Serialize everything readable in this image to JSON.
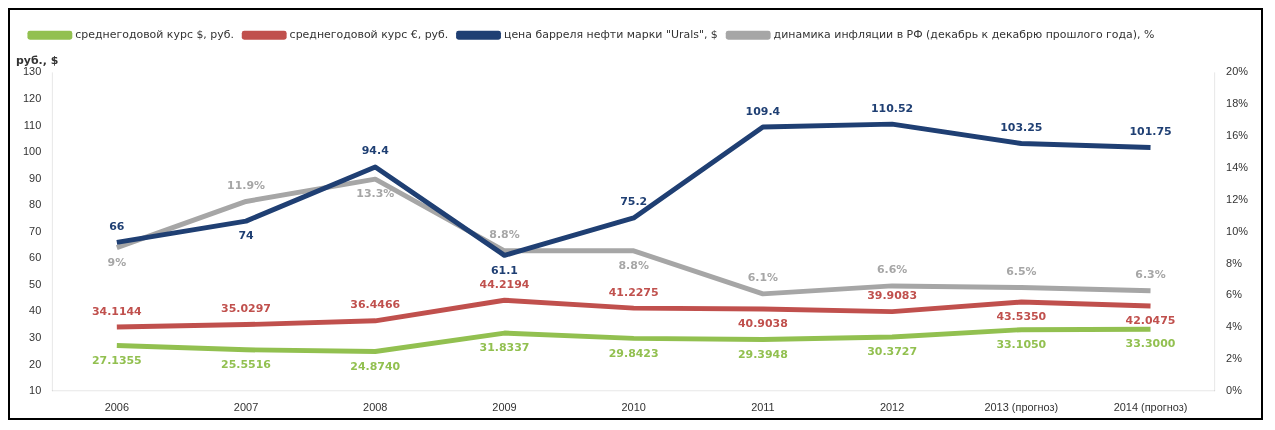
{
  "chart_data": {
    "type": "line",
    "ylabel": "руб., $",
    "categories": [
      "2006",
      "2007",
      "2008",
      "2009",
      "2010",
      "2011",
      "2012",
      "2013 (прогноз)",
      "2014 (прогноз)"
    ],
    "series": [
      {
        "name": "среднегодовой курс $, руб.",
        "color": "#92c050",
        "values": [
          27.1355,
          25.5516,
          24.874,
          31.8337,
          29.8423,
          29.3948,
          30.3727,
          33.105,
          33.3
        ],
        "value_labels": [
          "27.1355",
          "25.5516",
          "24.8740",
          "31.8337",
          "29.8423",
          "29.3948",
          "30.3727",
          "33.1050",
          "33.3000"
        ]
      },
      {
        "name": "среднегодовой курс €, руб.",
        "color": "#c0504d",
        "values": [
          34.1144,
          35.0297,
          36.4466,
          44.2194,
          41.2275,
          40.9038,
          39.9083,
          43.535,
          42.0475
        ],
        "value_labels": [
          "34.1144",
          "35.0297",
          "36.4466",
          "44.2194",
          "41.2275",
          "40.9038",
          "39.9083",
          "43.5350",
          "42.0475"
        ]
      },
      {
        "name": "цена барреля нефти марки \"Urals\", $",
        "color": "#1f3f73",
        "values": [
          66,
          74,
          94.4,
          61.1,
          75.2,
          109.4,
          110.52,
          103.25,
          101.75
        ],
        "value_labels": [
          "66",
          "74",
          "94.4",
          "61.1",
          "75.2",
          "109.4",
          "110.52",
          "103.25",
          "101.75"
        ]
      },
      {
        "name": "динамика инфляции в РФ (декабрь к декабрю прошлого года), %",
        "color": "#a6a6a6",
        "axis": "y2",
        "values": [
          9,
          11.9,
          13.3,
          8.8,
          8.8,
          6.1,
          6.6,
          6.5,
          6.3
        ],
        "value_labels": [
          "9%",
          "11.9%",
          "13.3%",
          "8.8%",
          "8.8%",
          "6.1%",
          "6.6%",
          "6.5%",
          "6.3%"
        ]
      }
    ],
    "ylim": [
      10,
      130
    ],
    "yticks": [
      10,
      20,
      30,
      40,
      50,
      60,
      70,
      80,
      90,
      100,
      110,
      120,
      130
    ],
    "y2lim": [
      0,
      20
    ],
    "y2ticks": [
      {
        "value": 0,
        "label": "0%"
      },
      {
        "value": 2,
        "label": "2%"
      },
      {
        "value": 4,
        "label": "4%"
      },
      {
        "value": 6,
        "label": "6%"
      },
      {
        "value": 8,
        "label": "8%"
      },
      {
        "value": 10,
        "label": "10%"
      },
      {
        "value": 12,
        "label": "12%"
      },
      {
        "value": 14,
        "label": "14%"
      },
      {
        "value": 16,
        "label": "16%"
      },
      {
        "value": 18,
        "label": "18%"
      },
      {
        "value": 20,
        "label": "20%"
      }
    ],
    "grid": false,
    "legend": "top left"
  }
}
